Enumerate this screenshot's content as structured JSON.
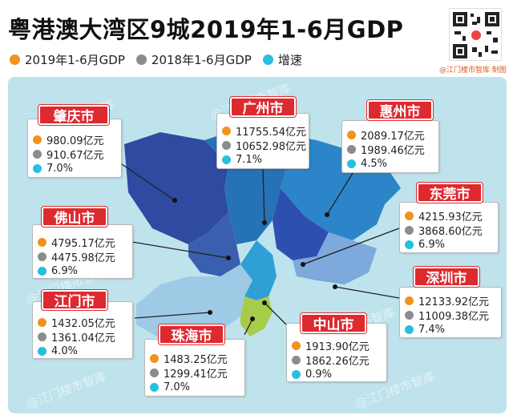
{
  "title": "粤港澳大湾区9城2019年1-6月GDP",
  "credit": "@江门楼市智库 制图",
  "watermark": "@江门楼市智库",
  "legend": [
    {
      "label": "2019年1-6月GDP",
      "color": "#f0931e"
    },
    {
      "label": "2018年1-6月GDP",
      "color": "#8c8c8c"
    },
    {
      "label": "增速",
      "color": "#26bfe0"
    }
  ],
  "cities": {
    "zhaoqing": {
      "name": "肇庆市",
      "gdp2019": "980.09亿元",
      "gdp2018": "910.67亿元",
      "growth": "7.0%"
    },
    "guangzhou": {
      "name": "广州市",
      "gdp2019": "11755.54亿元",
      "gdp2018": "10652.98亿元",
      "growth": "7.1%"
    },
    "huizhou": {
      "name": "惠州市",
      "gdp2019": "2089.17亿元",
      "gdp2018": "1989.46亿元",
      "growth": "4.5%"
    },
    "foshan": {
      "name": "佛山市",
      "gdp2019": "4795.17亿元",
      "gdp2018": "4475.98亿元",
      "growth": "6.9%"
    },
    "dongguan": {
      "name": "东莞市",
      "gdp2019": "4215.93亿元",
      "gdp2018": "3868.60亿元",
      "growth": "6.9%"
    },
    "jiangmen": {
      "name": "江门市",
      "gdp2019": "1432.05亿元",
      "gdp2018": "1361.04亿元",
      "growth": "4.0%"
    },
    "shenzhen": {
      "name": "深圳市",
      "gdp2019": "12133.92亿元",
      "gdp2018": "11009.38亿元",
      "growth": "7.4%"
    },
    "zhuhai": {
      "name": "珠海市",
      "gdp2019": "1483.25亿元",
      "gdp2018": "1299.41亿元",
      "growth": "7.0%"
    },
    "zhongshan": {
      "name": "中山市",
      "gdp2019": "1913.90亿元",
      "gdp2018": "1862.26亿元",
      "growth": "0.9%"
    }
  },
  "colors": {
    "tag": "#dd2a2f",
    "orange": "#f0931e",
    "gray": "#8c8c8c",
    "cyan": "#26bfe0",
    "map_bg": "#bfe3ec"
  }
}
